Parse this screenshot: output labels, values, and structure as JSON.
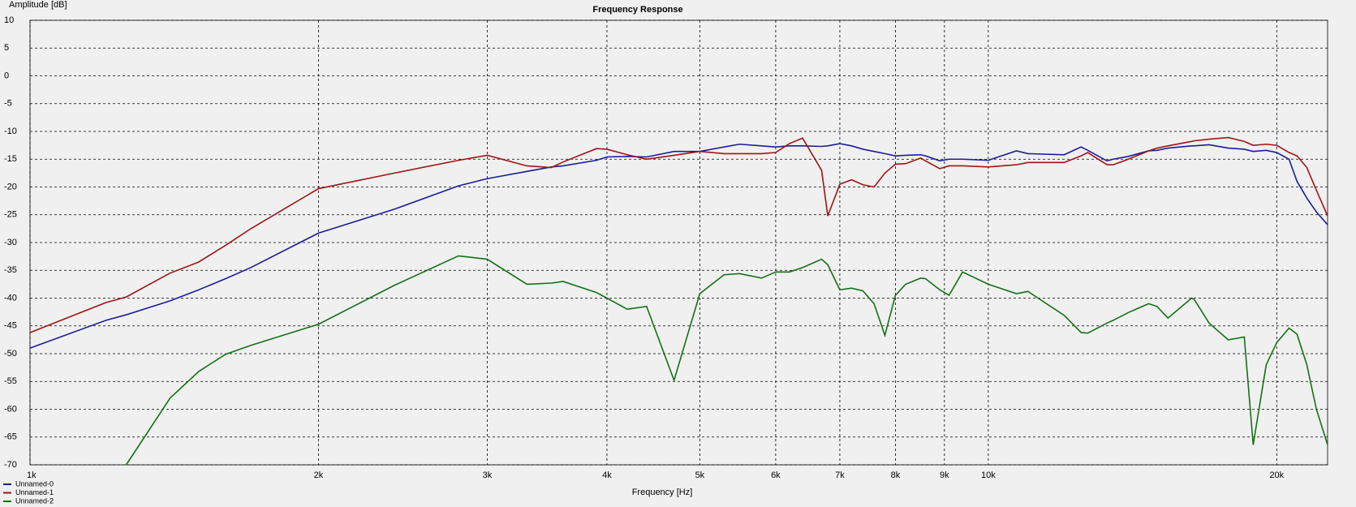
{
  "chart_data": {
    "type": "line",
    "title": "Frequency Response",
    "y_label": "Amplitude [dB]",
    "x_label": "Frequency [Hz]",
    "x_scale": "log",
    "grid": true,
    "legend": "bottom-left",
    "xlim": [
      1000,
      22600
    ],
    "ylim": [
      -70,
      10
    ],
    "xticks": [
      {
        "value": 1000,
        "label": "1k"
      },
      {
        "value": 2000,
        "label": "2k"
      },
      {
        "value": 3000,
        "label": "3k"
      },
      {
        "value": 4000,
        "label": "4k"
      },
      {
        "value": 5000,
        "label": "5k"
      },
      {
        "value": 6000,
        "label": "6k"
      },
      {
        "value": 7000,
        "label": "7k"
      },
      {
        "value": 8000,
        "label": "8k"
      },
      {
        "value": 9000,
        "label": "9k"
      },
      {
        "value": 10000,
        "label": "10k"
      },
      {
        "value": 20000,
        "label": "20k"
      }
    ],
    "yticks": [
      10,
      5,
      0,
      -5,
      -10,
      -15,
      -20,
      -25,
      -30,
      -35,
      -40,
      -45,
      -50,
      -55,
      -60,
      -65,
      -70
    ],
    "x": [
      1000,
      1200,
      1260,
      1400,
      1500,
      1600,
      1700,
      2000,
      2400,
      2800,
      3000,
      3300,
      3500,
      3600,
      3900,
      4000,
      4200,
      4400,
      4700,
      5000,
      5300,
      5500,
      5800,
      6000,
      6200,
      6400,
      6700,
      6800,
      7000,
      7200,
      7400,
      7600,
      7800,
      8000,
      8200,
      8500,
      8600,
      8900,
      9100,
      9400,
      10000,
      10700,
      11000,
      12000,
      12500,
      12700,
      13300,
      13500,
      14000,
      14700,
      15000,
      15400,
      16300,
      16400,
      17000,
      17800,
      18500,
      18900,
      19500,
      20000,
      20600,
      21000,
      21500,
      22000,
      22600
    ],
    "series": [
      {
        "name": "Unnamed-0",
        "color": "#1c1c9c",
        "values": [
          -49,
          -44,
          -43,
          -40.5,
          -38.5,
          -36.5,
          -34.5,
          -28.3,
          -24,
          -19.8,
          -18.5,
          -17.2,
          -16.4,
          -16.2,
          -15.2,
          -14.6,
          -14.5,
          -14.6,
          -13.6,
          -13.6,
          -12.8,
          -12.3,
          -12.6,
          -12.8,
          -12.6,
          -12.6,
          -12.7,
          -12.6,
          -12.2,
          -12.6,
          -13.2,
          -13.6,
          -14,
          -14.4,
          -14.3,
          -14.2,
          -14.4,
          -15.3,
          -15,
          -15,
          -15.2,
          -13.5,
          -14,
          -14.2,
          -12.8,
          -13.4,
          -15.3,
          -15,
          -14.5,
          -13.5,
          -13.4,
          -13,
          -12.6,
          -12.6,
          -12.4,
          -13,
          -13.2,
          -13.6,
          -13.4,
          -13.8,
          -15,
          -19,
          -22,
          -24.5,
          -26.8
        ]
      },
      {
        "name": "Unnamed-1",
        "color": "#a01414",
        "values": [
          -46.2,
          -40.8,
          -39.8,
          -35.5,
          -33.5,
          -30.5,
          -27.5,
          -20.3,
          -17.5,
          -15.2,
          -14.3,
          -16.2,
          -16.5,
          -15.5,
          -13.1,
          -13.2,
          -14.2,
          -15,
          -14.3,
          -13.6,
          -14,
          -14,
          -14,
          -13.8,
          -12.2,
          -11.2,
          -17,
          -25.2,
          -19.5,
          -18.7,
          -19.6,
          -20,
          -17.5,
          -15.9,
          -15.8,
          -14.8,
          -15.3,
          -16.7,
          -16.2,
          -16.2,
          -16.4,
          -16,
          -15.6,
          -15.6,
          -14.4,
          -13.8,
          -16,
          -16,
          -15,
          -13.5,
          -13,
          -12.6,
          -11.8,
          -11.7,
          -11.4,
          -11.1,
          -11.8,
          -12.5,
          -12.3,
          -12.5,
          -13.8,
          -14.4,
          -16.5,
          -20.6,
          -25.2
        ]
      },
      {
        "name": "Unnamed-2",
        "color": "#157015",
        "values": [
          null,
          null,
          -70,
          -58,
          -53.2,
          -50.1,
          -48.5,
          -44.7,
          -37.7,
          -32.4,
          -33,
          -37.5,
          -37.3,
          -37,
          -39,
          -40,
          -42,
          -41.5,
          -54.8,
          -39.2,
          -35.8,
          -35.6,
          -36.4,
          -35.3,
          -35.3,
          -34.5,
          -33,
          -34,
          -38.5,
          -38.2,
          -38.7,
          -41,
          -46.7,
          -39.5,
          -37.5,
          -36.4,
          -36.5,
          -38.5,
          -39.5,
          -35.3,
          -37.5,
          -39.2,
          -38.8,
          -43.1,
          -46.2,
          -46.3,
          -44.5,
          -44,
          -42.6,
          -41,
          -41.5,
          -43.6,
          -40,
          -40.2,
          -44.5,
          -47.5,
          -47,
          -66.4,
          -52,
          -48,
          -45.4,
          -46.5,
          -52,
          -60,
          -66.4
        ]
      }
    ]
  }
}
